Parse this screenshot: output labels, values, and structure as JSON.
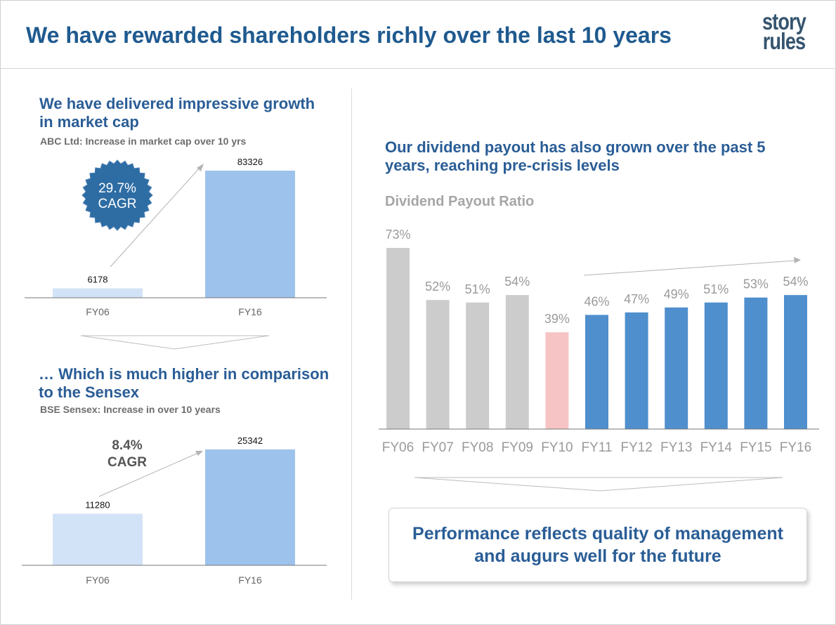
{
  "title": "We have rewarded shareholders richly over the last 10 years",
  "logo": {
    "line1": "story",
    "line2": "rules"
  },
  "left_top": {
    "heading": "We have delivered impressive growth in market cap",
    "subheading": "ABC Ltd: Increase in market cap over 10 yrs",
    "badge": {
      "line1": "29.7%",
      "line2": "CAGR"
    }
  },
  "left_bottom": {
    "heading": "… Which is much higher in comparison to the Sensex",
    "subheading": "BSE Sensex: Increase in over 10 years",
    "badge": {
      "line1": "8.4%",
      "line2": "CAGR"
    }
  },
  "right": {
    "heading": "Our dividend payout has also grown over the past 5 years, reaching pre-crisis levels",
    "subheading": "Dividend Payout Ratio"
  },
  "takeaway": "Performance reflects quality of management and augurs well for the future",
  "colors": {
    "title_blue": "#1f5a8f",
    "badge_blue": "#2e6da4",
    "light_blue": "#d3e3f7",
    "mid_blue": "#9dc3ec",
    "bar_blue": "#4f8fcd",
    "grey_bar": "#cccccc",
    "pink_bar": "#f6c4c4"
  },
  "chart_data": [
    {
      "type": "bar",
      "categories": [
        "FY06",
        "FY16"
      ],
      "values": [
        6178,
        83326
      ],
      "data_labels": [
        "6178",
        "83326"
      ],
      "ylim": [
        0,
        83326
      ],
      "grid": false
    },
    {
      "type": "bar",
      "categories": [
        "FY06",
        "FY16"
      ],
      "values": [
        11280,
        25342
      ],
      "data_labels": [
        "11280",
        "25342"
      ],
      "ylim": [
        0,
        25342
      ],
      "grid": false
    },
    {
      "type": "bar",
      "title": "Dividend Payout Ratio",
      "categories": [
        "FY06",
        "FY07",
        "FY08",
        "FY09",
        "FY10",
        "FY11",
        "FY12",
        "FY13",
        "FY14",
        "FY15",
        "FY16"
      ],
      "values": [
        73,
        52,
        51,
        54,
        39,
        46,
        47,
        49,
        51,
        53,
        54
      ],
      "data_labels": [
        "73%",
        "52%",
        "51%",
        "54%",
        "39%",
        "46%",
        "47%",
        "49%",
        "51%",
        "53%",
        "54%"
      ],
      "bar_colors": [
        "#cccccc",
        "#cccccc",
        "#cccccc",
        "#cccccc",
        "#f6c4c4",
        "#4f8fcd",
        "#4f8fcd",
        "#4f8fcd",
        "#4f8fcd",
        "#4f8fcd",
        "#4f8fcd"
      ],
      "ylim": [
        0,
        73
      ],
      "grid": false
    }
  ]
}
